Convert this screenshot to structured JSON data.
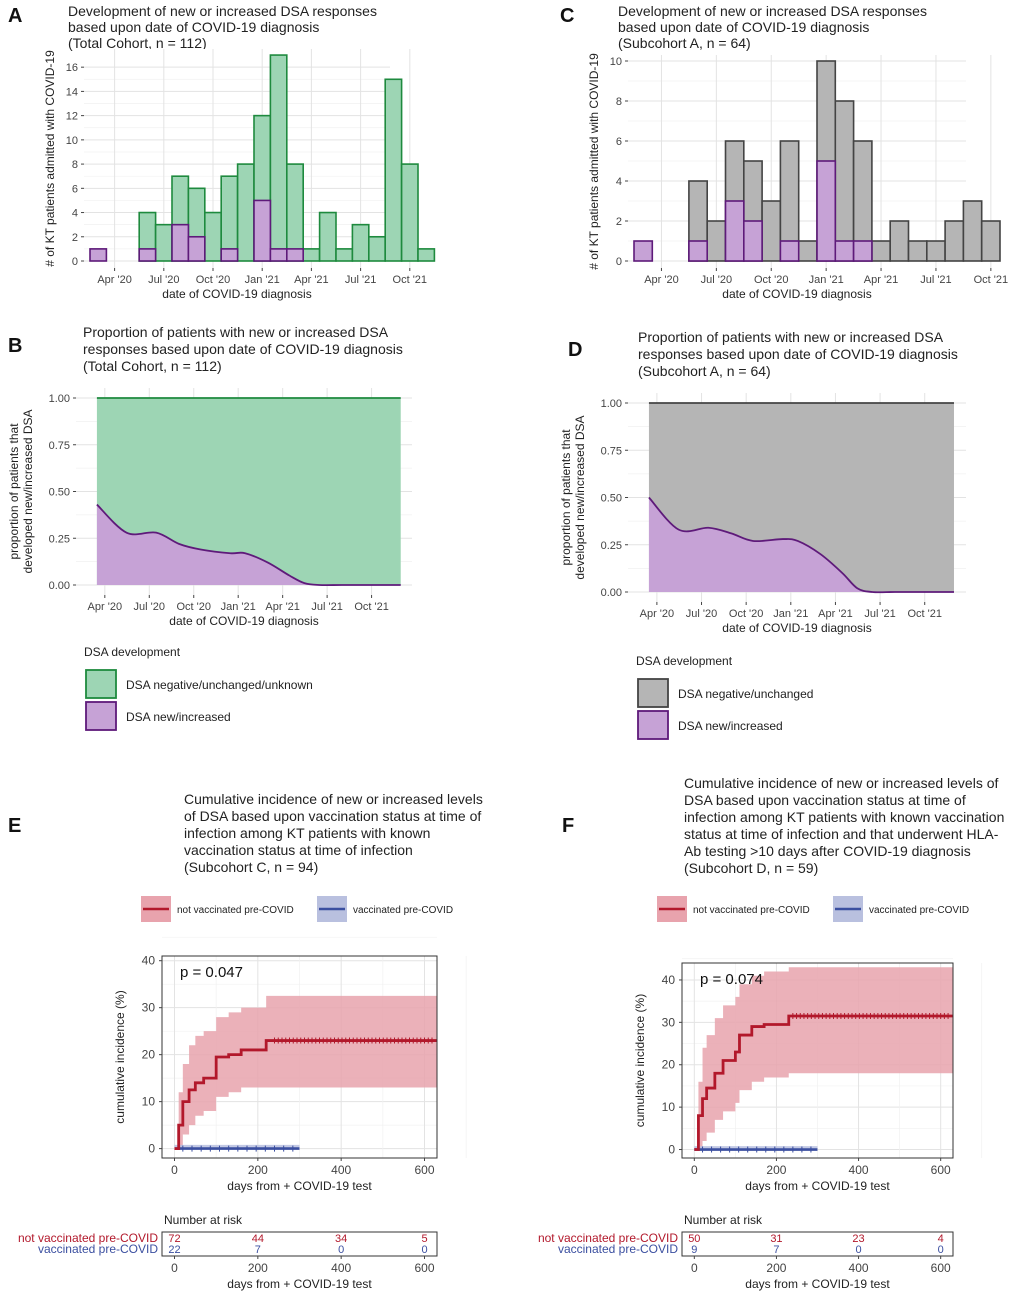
{
  "colors": {
    "green_fill": "#9dd5b4",
    "green_line": "#1e8a3e",
    "purple_fill": "#c6a2d6",
    "purple_line": "#5e1a7a",
    "grey_fill": "#b5b5b5",
    "grey_line": "#444444",
    "red": "#b2182b",
    "red_band": "#e8a3ad",
    "blue": "#3b4fa0",
    "blue_band": "#b9c0df"
  },
  "panels": {
    "A": {
      "letter": "A",
      "title": [
        "Development of new or increased DSA responses",
        "based upon date of COVID-19 diagnosis",
        "(Total Cohort, n = 112)"
      ]
    },
    "B": {
      "letter": "B",
      "title": [
        "Proportion of patients with new or increased DSA",
        "responses based upon date of COVID-19 diagnosis",
        "(Total Cohort, n = 112)"
      ]
    },
    "C": {
      "letter": "C",
      "title": [
        "Development of new or increased DSA responses",
        "based upon date of COVID-19 diagnosis",
        "(Subcohort A, n = 64)"
      ]
    },
    "D": {
      "letter": "D",
      "title": [
        "Proportion of patients with new or increased DSA",
        "responses based upon date of COVID-19 diagnosis",
        "(Subcohort A, n = 64)"
      ]
    },
    "E": {
      "letter": "E",
      "title": [
        "Cumulative incidence of new or increased levels",
        "of DSA based upon vaccination status at time of",
        "infection among KT patients with known",
        "vaccination status at time of infection",
        "(Subcohort C, n = 94)"
      ]
    },
    "F": {
      "letter": "F",
      "title": [
        "Cumulative incidence of new or increased levels of",
        "DSA based upon vaccination status at time of",
        "infection among KT patients with known vaccination",
        "status at time of infection and that underwent HLA-",
        "Ab testing >10 days after COVID-19 diagnosis",
        "(Subcohort D, n = 59)"
      ]
    }
  },
  "legends": {
    "dsa_title": "DSA development",
    "dsa_B": [
      "DSA negative/unchanged/unknown",
      "DSA new/increased"
    ],
    "dsa_D": [
      "DSA negative/unchanged",
      "DSA new/increased"
    ],
    "vacc": [
      "not vaccinated pre-COVID",
      "vaccinated pre-COVID"
    ]
  },
  "risk": {
    "title": "Number at risk",
    "rows": [
      "not vaccinated pre-COVID",
      "vaccinated pre-COVID"
    ],
    "E": [
      [
        72,
        44,
        34,
        5
      ],
      [
        22,
        7,
        0,
        0
      ]
    ],
    "F": [
      [
        50,
        31,
        23,
        4
      ],
      [
        9,
        7,
        0,
        0
      ]
    ],
    "xticks": [
      "0",
      "200",
      "400",
      "600"
    ],
    "xlabel": "days from + COVID-19 test"
  },
  "chart_data": [
    {
      "id": "A",
      "type": "bar",
      "xlabel": "date of COVID-19 diagnosis",
      "ylabel": "# of KT patients admitted with COVID-19",
      "ylim": [
        0,
        17.5
      ],
      "yticks": [
        0,
        2,
        4,
        6,
        8,
        10,
        12,
        14,
        16
      ],
      "xticks": [
        "Apr '20",
        "Jul '20",
        "Oct '20",
        "Jan '21",
        "Apr '21",
        "Jul '21",
        "Oct '21"
      ],
      "months": [
        "2020-03",
        "2020-04",
        "2020-05",
        "2020-06",
        "2020-07",
        "2020-08",
        "2020-09",
        "2020-10",
        "2020-11",
        "2020-12",
        "2021-01",
        "2021-02",
        "2021-03",
        "2021-04",
        "2021-05",
        "2021-06",
        "2021-07",
        "2021-08",
        "2021-09",
        "2021-10",
        "2021-11"
      ],
      "series": [
        {
          "name": "DSA negative/unchanged/unknown",
          "values": [
            0,
            0,
            0,
            4,
            3,
            7,
            6,
            4,
            7,
            8,
            12,
            17,
            8,
            1,
            4,
            1,
            3,
            2,
            15,
            8,
            1
          ]
        },
        {
          "name": "DSA new/increased",
          "values": [
            1,
            0,
            0,
            1,
            0,
            3,
            2,
            0,
            1,
            0,
            5,
            1,
            1,
            0,
            0,
            0,
            0,
            0,
            0,
            0,
            0
          ]
        }
      ]
    },
    {
      "id": "C",
      "type": "bar",
      "xlabel": "date of COVID-19 diagnosis",
      "ylabel": "# of KT patients admitted with COVID-19",
      "ylim": [
        0,
        10.3
      ],
      "yticks": [
        0,
        2,
        4,
        6,
        8,
        10
      ],
      "xticks": [
        "Apr '20",
        "Jul '20",
        "Oct '20",
        "Jan '21",
        "Apr '21",
        "Jul '21",
        "Oct '21"
      ],
      "months": [
        "2020-03",
        "2020-04",
        "2020-05",
        "2020-06",
        "2020-07",
        "2020-08",
        "2020-09",
        "2020-10",
        "2020-11",
        "2020-12",
        "2021-01",
        "2021-02",
        "2021-03",
        "2021-04",
        "2021-05",
        "2021-06",
        "2021-07",
        "2021-08",
        "2021-09",
        "2021-10",
        "2021-11"
      ],
      "series": [
        {
          "name": "DSA negative/unchanged",
          "values": [
            0,
            0,
            0,
            4,
            2,
            6,
            5,
            3,
            6,
            1,
            10,
            8,
            6,
            1,
            2,
            1,
            1,
            2,
            3,
            2,
            0
          ]
        },
        {
          "name": "DSA new/increased",
          "values": [
            1,
            0,
            0,
            1,
            0,
            3,
            2,
            0,
            1,
            0,
            5,
            1,
            1,
            0,
            0,
            0,
            0,
            0,
            0,
            0,
            0
          ]
        }
      ]
    },
    {
      "id": "B",
      "type": "area",
      "xlabel": "date of COVID-19 diagnosis",
      "ylabel": "proportion of patients that developed new/increased DSA",
      "ylim": [
        0,
        1
      ],
      "yticks": [
        "0.00",
        "0.25",
        "0.50",
        "0.75",
        "1.00"
      ],
      "xticks": [
        "Apr '20",
        "Jul '20",
        "Oct '20",
        "Jan '21",
        "Apr '21",
        "Jul '21",
        "Oct '21"
      ],
      "x": [
        "2020-03-15",
        "2020-05-15",
        "2020-07-15",
        "2020-09-01",
        "2020-10-15",
        "2020-12-15",
        "2021-01-15",
        "2021-03-01",
        "2021-04-15",
        "2021-05-15",
        "2021-06-15",
        "2021-08-01",
        "2021-10-01",
        "2021-11-30"
      ],
      "series": [
        {
          "name": "DSA negative/unchanged/unknown",
          "values": [
            1,
            1,
            1,
            1,
            1,
            1,
            1,
            1,
            1,
            1,
            1,
            1,
            1,
            1
          ]
        },
        {
          "name": "DSA new/increased",
          "values": [
            0.43,
            0.28,
            0.28,
            0.22,
            0.19,
            0.17,
            0.17,
            0.12,
            0.05,
            0.01,
            0.0,
            0.0,
            0.0,
            0.0
          ]
        }
      ]
    },
    {
      "id": "D",
      "type": "area",
      "xlabel": "date of COVID-19 diagnosis",
      "ylabel": "proportion of patients that developed new/increased DSA",
      "ylim": [
        0,
        1
      ],
      "yticks": [
        "0.00",
        "0.25",
        "0.50",
        "0.75",
        "1.00"
      ],
      "xticks": [
        "Apr '20",
        "Jul '20",
        "Oct '20",
        "Jan '21",
        "Apr '21",
        "Jul '21",
        "Oct '21"
      ],
      "x": [
        "2020-03-15",
        "2020-05-15",
        "2020-07-15",
        "2020-09-01",
        "2020-10-15",
        "2020-12-15",
        "2021-01-15",
        "2021-03-01",
        "2021-04-15",
        "2021-05-15",
        "2021-06-15",
        "2021-08-01",
        "2021-10-01",
        "2021-11-30"
      ],
      "series": [
        {
          "name": "DSA negative/unchanged",
          "values": [
            1,
            1,
            1,
            1,
            1,
            1,
            1,
            1,
            1,
            1,
            1,
            1,
            1,
            1
          ]
        },
        {
          "name": "DSA new/increased",
          "values": [
            0.5,
            0.33,
            0.34,
            0.31,
            0.27,
            0.28,
            0.27,
            0.2,
            0.1,
            0.02,
            0.0,
            0.0,
            0.0,
            0.0
          ]
        }
      ]
    },
    {
      "id": "E",
      "type": "line",
      "xlabel": "days from + COVID-19 test",
      "ylabel": "cumulative incidence (%)",
      "xlim": [
        -30,
        630
      ],
      "ylim": [
        -2,
        41
      ],
      "xticks": [
        0,
        200,
        400,
        600
      ],
      "yticks": [
        0,
        10,
        20,
        30,
        40
      ],
      "annotation": "p = 0.047",
      "series": [
        {
          "name": "not vaccinated pre-COVID",
          "x": [
            0,
            10,
            20,
            35,
            50,
            70,
            100,
            130,
            160,
            220,
            630
          ],
          "y": [
            0,
            5,
            10,
            12.5,
            14,
            15,
            19.5,
            20,
            21,
            23,
            23
          ],
          "upper": [
            0,
            12,
            18,
            22,
            24,
            25,
            28,
            29,
            30,
            32.5,
            32.5
          ],
          "lower": [
            0,
            0,
            3,
            5,
            7,
            8,
            11,
            12,
            13,
            13,
            12
          ]
        },
        {
          "name": "vaccinated pre-COVID",
          "x": [
            0,
            300
          ],
          "y": [
            0,
            0
          ],
          "upper": [
            0.8,
            0.8
          ],
          "lower": [
            0,
            0
          ]
        }
      ]
    },
    {
      "id": "F",
      "type": "line",
      "xlabel": "days from + COVID-19 test",
      "ylabel": "cumulative incidence (%)",
      "xlim": [
        -30,
        630
      ],
      "ylim": [
        -2,
        44
      ],
      "xticks": [
        0,
        200,
        400,
        600
      ],
      "yticks": [
        0,
        10,
        20,
        30,
        40
      ],
      "annotation": "p = 0.074",
      "series": [
        {
          "name": "not vaccinated pre-COVID",
          "x": [
            0,
            10,
            20,
            30,
            50,
            70,
            100,
            110,
            140,
            170,
            230,
            630
          ],
          "y": [
            0,
            8,
            12,
            14.5,
            18,
            21,
            23,
            27,
            29,
            29.5,
            31.5,
            31.5
          ],
          "upper": [
            0,
            16,
            24,
            27,
            31,
            34,
            36,
            39,
            41,
            42,
            43,
            43
          ],
          "lower": [
            0,
            0,
            2,
            4,
            7,
            9,
            11,
            14,
            16,
            17,
            18,
            17
          ]
        },
        {
          "name": "vaccinated pre-COVID",
          "x": [
            0,
            300
          ],
          "y": [
            0,
            0
          ],
          "upper": [
            0.8,
            0.8
          ],
          "lower": [
            0,
            0
          ]
        }
      ]
    }
  ]
}
